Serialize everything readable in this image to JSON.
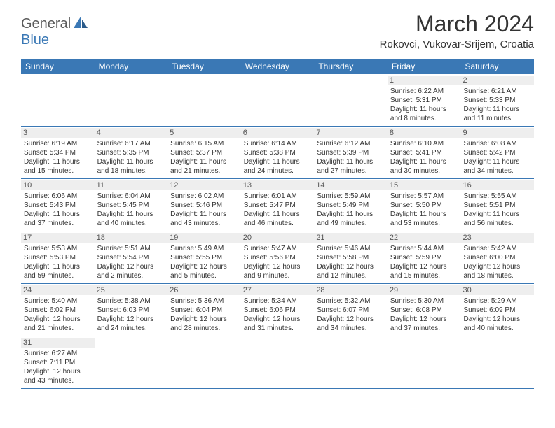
{
  "logo": {
    "part1": "General",
    "part2": "Blue"
  },
  "title": "March 2024",
  "location": "Rokovci, Vukovar-Srijem, Croatia",
  "dayNames": [
    "Sunday",
    "Monday",
    "Tuesday",
    "Wednesday",
    "Thursday",
    "Friday",
    "Saturday"
  ],
  "header_bg": "#3a78b5",
  "header_fg": "#ffffff",
  "daynum_bg": "#eeeeee",
  "rule_color": "#3a78b5",
  "font_family": "Arial",
  "title_fontsize": 32,
  "location_fontsize": 15,
  "dayname_fontsize": 12,
  "daynum_fontsize": 11,
  "cell_fontsize": 10,
  "weeks": [
    [
      {
        "empty": true
      },
      {
        "empty": true
      },
      {
        "empty": true
      },
      {
        "empty": true
      },
      {
        "empty": true
      },
      {
        "day": "1",
        "sunrise": "Sunrise: 6:22 AM",
        "sunset": "Sunset: 5:31 PM",
        "day1": "Daylight: 11 hours",
        "day2": "and 8 minutes."
      },
      {
        "day": "2",
        "sunrise": "Sunrise: 6:21 AM",
        "sunset": "Sunset: 5:33 PM",
        "day1": "Daylight: 11 hours",
        "day2": "and 11 minutes."
      }
    ],
    [
      {
        "day": "3",
        "sunrise": "Sunrise: 6:19 AM",
        "sunset": "Sunset: 5:34 PM",
        "day1": "Daylight: 11 hours",
        "day2": "and 15 minutes."
      },
      {
        "day": "4",
        "sunrise": "Sunrise: 6:17 AM",
        "sunset": "Sunset: 5:35 PM",
        "day1": "Daylight: 11 hours",
        "day2": "and 18 minutes."
      },
      {
        "day": "5",
        "sunrise": "Sunrise: 6:15 AM",
        "sunset": "Sunset: 5:37 PM",
        "day1": "Daylight: 11 hours",
        "day2": "and 21 minutes."
      },
      {
        "day": "6",
        "sunrise": "Sunrise: 6:14 AM",
        "sunset": "Sunset: 5:38 PM",
        "day1": "Daylight: 11 hours",
        "day2": "and 24 minutes."
      },
      {
        "day": "7",
        "sunrise": "Sunrise: 6:12 AM",
        "sunset": "Sunset: 5:39 PM",
        "day1": "Daylight: 11 hours",
        "day2": "and 27 minutes."
      },
      {
        "day": "8",
        "sunrise": "Sunrise: 6:10 AM",
        "sunset": "Sunset: 5:41 PM",
        "day1": "Daylight: 11 hours",
        "day2": "and 30 minutes."
      },
      {
        "day": "9",
        "sunrise": "Sunrise: 6:08 AM",
        "sunset": "Sunset: 5:42 PM",
        "day1": "Daylight: 11 hours",
        "day2": "and 34 minutes."
      }
    ],
    [
      {
        "day": "10",
        "sunrise": "Sunrise: 6:06 AM",
        "sunset": "Sunset: 5:43 PM",
        "day1": "Daylight: 11 hours",
        "day2": "and 37 minutes."
      },
      {
        "day": "11",
        "sunrise": "Sunrise: 6:04 AM",
        "sunset": "Sunset: 5:45 PM",
        "day1": "Daylight: 11 hours",
        "day2": "and 40 minutes."
      },
      {
        "day": "12",
        "sunrise": "Sunrise: 6:02 AM",
        "sunset": "Sunset: 5:46 PM",
        "day1": "Daylight: 11 hours",
        "day2": "and 43 minutes."
      },
      {
        "day": "13",
        "sunrise": "Sunrise: 6:01 AM",
        "sunset": "Sunset: 5:47 PM",
        "day1": "Daylight: 11 hours",
        "day2": "and 46 minutes."
      },
      {
        "day": "14",
        "sunrise": "Sunrise: 5:59 AM",
        "sunset": "Sunset: 5:49 PM",
        "day1": "Daylight: 11 hours",
        "day2": "and 49 minutes."
      },
      {
        "day": "15",
        "sunrise": "Sunrise: 5:57 AM",
        "sunset": "Sunset: 5:50 PM",
        "day1": "Daylight: 11 hours",
        "day2": "and 53 minutes."
      },
      {
        "day": "16",
        "sunrise": "Sunrise: 5:55 AM",
        "sunset": "Sunset: 5:51 PM",
        "day1": "Daylight: 11 hours",
        "day2": "and 56 minutes."
      }
    ],
    [
      {
        "day": "17",
        "sunrise": "Sunrise: 5:53 AM",
        "sunset": "Sunset: 5:53 PM",
        "day1": "Daylight: 11 hours",
        "day2": "and 59 minutes."
      },
      {
        "day": "18",
        "sunrise": "Sunrise: 5:51 AM",
        "sunset": "Sunset: 5:54 PM",
        "day1": "Daylight: 12 hours",
        "day2": "and 2 minutes."
      },
      {
        "day": "19",
        "sunrise": "Sunrise: 5:49 AM",
        "sunset": "Sunset: 5:55 PM",
        "day1": "Daylight: 12 hours",
        "day2": "and 5 minutes."
      },
      {
        "day": "20",
        "sunrise": "Sunrise: 5:47 AM",
        "sunset": "Sunset: 5:56 PM",
        "day1": "Daylight: 12 hours",
        "day2": "and 9 minutes."
      },
      {
        "day": "21",
        "sunrise": "Sunrise: 5:46 AM",
        "sunset": "Sunset: 5:58 PM",
        "day1": "Daylight: 12 hours",
        "day2": "and 12 minutes."
      },
      {
        "day": "22",
        "sunrise": "Sunrise: 5:44 AM",
        "sunset": "Sunset: 5:59 PM",
        "day1": "Daylight: 12 hours",
        "day2": "and 15 minutes."
      },
      {
        "day": "23",
        "sunrise": "Sunrise: 5:42 AM",
        "sunset": "Sunset: 6:00 PM",
        "day1": "Daylight: 12 hours",
        "day2": "and 18 minutes."
      }
    ],
    [
      {
        "day": "24",
        "sunrise": "Sunrise: 5:40 AM",
        "sunset": "Sunset: 6:02 PM",
        "day1": "Daylight: 12 hours",
        "day2": "and 21 minutes."
      },
      {
        "day": "25",
        "sunrise": "Sunrise: 5:38 AM",
        "sunset": "Sunset: 6:03 PM",
        "day1": "Daylight: 12 hours",
        "day2": "and 24 minutes."
      },
      {
        "day": "26",
        "sunrise": "Sunrise: 5:36 AM",
        "sunset": "Sunset: 6:04 PM",
        "day1": "Daylight: 12 hours",
        "day2": "and 28 minutes."
      },
      {
        "day": "27",
        "sunrise": "Sunrise: 5:34 AM",
        "sunset": "Sunset: 6:06 PM",
        "day1": "Daylight: 12 hours",
        "day2": "and 31 minutes."
      },
      {
        "day": "28",
        "sunrise": "Sunrise: 5:32 AM",
        "sunset": "Sunset: 6:07 PM",
        "day1": "Daylight: 12 hours",
        "day2": "and 34 minutes."
      },
      {
        "day": "29",
        "sunrise": "Sunrise: 5:30 AM",
        "sunset": "Sunset: 6:08 PM",
        "day1": "Daylight: 12 hours",
        "day2": "and 37 minutes."
      },
      {
        "day": "30",
        "sunrise": "Sunrise: 5:29 AM",
        "sunset": "Sunset: 6:09 PM",
        "day1": "Daylight: 12 hours",
        "day2": "and 40 minutes."
      }
    ],
    [
      {
        "day": "31",
        "sunrise": "Sunrise: 6:27 AM",
        "sunset": "Sunset: 7:11 PM",
        "day1": "Daylight: 12 hours",
        "day2": "and 43 minutes."
      },
      {
        "empty": true
      },
      {
        "empty": true
      },
      {
        "empty": true
      },
      {
        "empty": true
      },
      {
        "empty": true
      },
      {
        "empty": true
      }
    ]
  ]
}
